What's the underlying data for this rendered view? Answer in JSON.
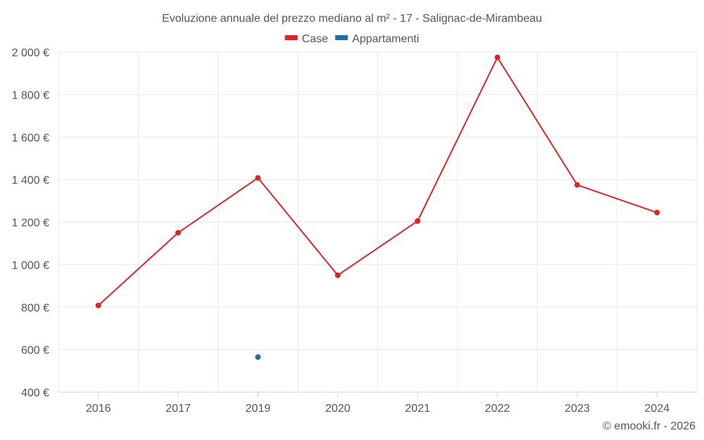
{
  "chart_data": {
    "type": "line",
    "title": "Evoluzione annuale del prezzo mediano al m² - 17 - Salignac-de-Mirambeau",
    "categories": [
      "2016",
      "2017",
      "2019",
      "2020",
      "2021",
      "2022",
      "2023",
      "2024"
    ],
    "ylim": [
      400,
      2000
    ],
    "yticks": [
      400,
      600,
      800,
      1000,
      1200,
      1400,
      1600,
      1800,
      2000
    ],
    "ytick_labels": [
      "400 €",
      "600 €",
      "800 €",
      "1 000 €",
      "1 200 €",
      "1 400 €",
      "1 600 €",
      "1 800 €",
      "2 000 €"
    ],
    "legend_position": "top-center",
    "series": [
      {
        "name": "Case",
        "color": "#d62728",
        "values": [
          808,
          1150,
          1408,
          950,
          1205,
          1975,
          1375,
          1245
        ]
      },
      {
        "name": "Appartamenti",
        "color": "#1f6fa3",
        "values": [
          null,
          null,
          565,
          null,
          null,
          null,
          null,
          null
        ]
      }
    ]
  },
  "credit": "© emooki.fr - 2026"
}
